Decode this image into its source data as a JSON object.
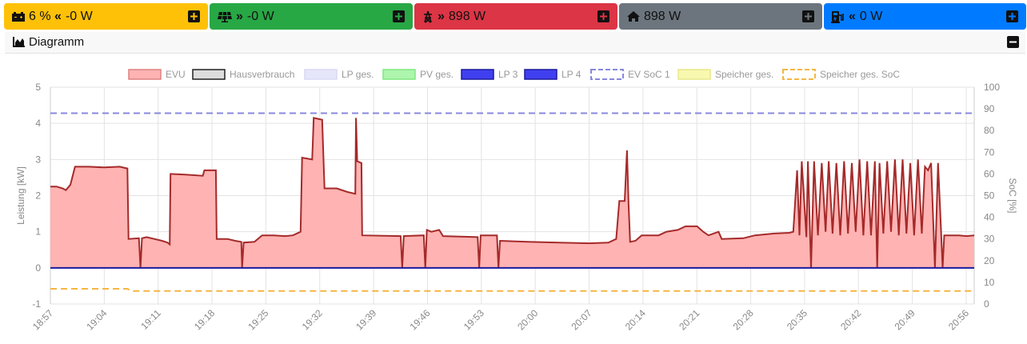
{
  "tiles": [
    {
      "id": "battery",
      "text": "6 % « -0 W",
      "soc": "6 %",
      "arrow": "«",
      "power": "-0 W",
      "bg": "#ffc107",
      "fg": "#111111"
    },
    {
      "id": "pv",
      "arrow": "»",
      "power": "-0 W",
      "bg": "#28a745",
      "fg": "#111111"
    },
    {
      "id": "grid",
      "arrow": "»",
      "power": "898 W",
      "bg": "#dc3545",
      "fg": "#111111"
    },
    {
      "id": "house",
      "power": "898 W",
      "bg": "#6c757d",
      "fg": "#111111"
    },
    {
      "id": "charge",
      "arrow": "«",
      "power": "0 W",
      "bg": "#007bff",
      "fg": "#111111"
    }
  ],
  "panel": {
    "title": "Diagramm"
  },
  "chart_data": {
    "type": "area",
    "legend": [
      {
        "name": "EVU",
        "fill": "#ffb3b3",
        "stroke": "#e08080",
        "dashed": false
      },
      {
        "name": "Hausverbrauch",
        "fill": "#dddddd",
        "stroke": "#222222",
        "dashed": false
      },
      {
        "name": "LP ges.",
        "fill": "#e6e6fa",
        "stroke": "#d8d8f5",
        "dashed": false
      },
      {
        "name": "PV ges.",
        "fill": "#aef5ae",
        "stroke": "#7ee87e",
        "dashed": false
      },
      {
        "name": "LP 3",
        "fill": "#4040f0",
        "stroke": "#1a1a9e",
        "dashed": false
      },
      {
        "name": "LP 4",
        "fill": "#4040f0",
        "stroke": "#1a1a9e",
        "dashed": false
      },
      {
        "name": "EV SoC 1",
        "fill": "#ffffff",
        "stroke": "#8888dd",
        "dashed": true
      },
      {
        "name": "Speicher ges.",
        "fill": "#f8f8b0",
        "stroke": "#e8e88a",
        "dashed": false
      },
      {
        "name": "Speicher ges. SoC",
        "fill": "#ffffff",
        "stroke": "#f5b642",
        "dashed": true
      }
    ],
    "ylabel": "Leistung [kW]",
    "y2label": "SoC [%]",
    "ylim": [
      -1,
      5
    ],
    "y2lim": [
      0,
      100
    ],
    "yticks": [
      "5",
      "4",
      "3",
      "2",
      "1",
      "0",
      "-1"
    ],
    "y2ticks": [
      "100",
      "90",
      "80",
      "70",
      "60",
      "50",
      "40",
      "30",
      "20",
      "10",
      "0"
    ],
    "xticks": [
      "18:57",
      "19:04",
      "19:11",
      "19:18",
      "19:25",
      "19:32",
      "19:39",
      "19:46",
      "19:53",
      "20:00",
      "20:07",
      "20:14",
      "20:21",
      "20:28",
      "20:35",
      "20:42",
      "20:49",
      "20:56"
    ],
    "xrange_minutes": [
      0,
      120
    ],
    "evu_series": [
      [
        0,
        2.25
      ],
      [
        0.8,
        2.25
      ],
      [
        1.6,
        2.2
      ],
      [
        2,
        2.15
      ],
      [
        2.6,
        2.3
      ],
      [
        3.2,
        2.8
      ],
      [
        5,
        2.8
      ],
      [
        7,
        2.78
      ],
      [
        9,
        2.8
      ],
      [
        10,
        2.75
      ],
      [
        10.15,
        0.8
      ],
      [
        11.5,
        0.82
      ],
      [
        11.7,
        0.0
      ],
      [
        11.9,
        0.82
      ],
      [
        12.5,
        0.85
      ],
      [
        13.5,
        0.8
      ],
      [
        14.5,
        0.75
      ],
      [
        15.2,
        0.7
      ],
      [
        15.5,
        0.65
      ],
      [
        15.6,
        2.6
      ],
      [
        17.5,
        2.58
      ],
      [
        19.8,
        2.55
      ],
      [
        20,
        2.7
      ],
      [
        21.5,
        2.7
      ],
      [
        21.6,
        0.8
      ],
      [
        23,
        0.8
      ],
      [
        24,
        0.75
      ],
      [
        24.8,
        0.72
      ],
      [
        24.9,
        0.0
      ],
      [
        25.1,
        0.7
      ],
      [
        26.5,
        0.72
      ],
      [
        27.5,
        0.9
      ],
      [
        29,
        0.9
      ],
      [
        30.5,
        0.88
      ],
      [
        31.5,
        0.9
      ],
      [
        32.5,
        1.0
      ],
      [
        32.7,
        3.05
      ],
      [
        34,
        3.0
      ],
      [
        34.2,
        4.15
      ],
      [
        35.3,
        4.1
      ],
      [
        35.6,
        2.2
      ],
      [
        37.2,
        2.2
      ],
      [
        38.6,
        2.1
      ],
      [
        39.6,
        2.05
      ],
      [
        39.7,
        4.15
      ],
      [
        39.85,
        2.95
      ],
      [
        40.4,
        2.9
      ],
      [
        40.5,
        0.9
      ],
      [
        45.5,
        0.88
      ],
      [
        45.7,
        0.0
      ],
      [
        45.9,
        0.88
      ],
      [
        48.5,
        0.9
      ],
      [
        48.7,
        0.0
      ],
      [
        48.9,
        1.05
      ],
      [
        49.5,
        1.0
      ],
      [
        50.5,
        1.05
      ],
      [
        51,
        0.88
      ],
      [
        55.5,
        0.85
      ],
      [
        55.7,
        0.0
      ],
      [
        55.9,
        0.9
      ],
      [
        58,
        0.9
      ],
      [
        58.2,
        0.0
      ],
      [
        58.4,
        0.75
      ],
      [
        62,
        0.72
      ],
      [
        66,
        0.7
      ],
      [
        70,
        0.68
      ],
      [
        72.5,
        0.7
      ],
      [
        73.5,
        0.8
      ],
      [
        73.9,
        1.85
      ],
      [
        74.6,
        1.85
      ],
      [
        74.9,
        3.25
      ],
      [
        75.1,
        1.8
      ],
      [
        75.3,
        0.72
      ],
      [
        76,
        0.75
      ],
      [
        76.8,
        0.9
      ],
      [
        79,
        0.9
      ],
      [
        80,
        1.0
      ],
      [
        81.5,
        1.05
      ],
      [
        82.5,
        1.15
      ],
      [
        84,
        1.15
      ],
      [
        84.8,
        1.0
      ],
      [
        85.5,
        0.9
      ],
      [
        86.8,
        1.0
      ],
      [
        87.2,
        0.8
      ],
      [
        90,
        0.82
      ],
      [
        91.5,
        0.9
      ],
      [
        94,
        0.95
      ],
      [
        96,
        0.97
      ],
      [
        96.5,
        1.0
      ],
      [
        97,
        2.7
      ],
      [
        97.3,
        0.9
      ],
      [
        97.6,
        2.95
      ],
      [
        98.2,
        0.85
      ],
      [
        98.4,
        2.95
      ],
      [
        98.8,
        0.0
      ],
      [
        99.2,
        2.95
      ],
      [
        99.7,
        0.9
      ],
      [
        100.2,
        2.9
      ],
      [
        100.7,
        1.0
      ],
      [
        101.1,
        2.95
      ],
      [
        101.6,
        0.95
      ],
      [
        102.1,
        2.9
      ],
      [
        102.6,
        0.9
      ],
      [
        103.1,
        2.95
      ],
      [
        103.6,
        0.95
      ],
      [
        104.1,
        2.9
      ],
      [
        104.6,
        1.0
      ],
      [
        105.1,
        3.0
      ],
      [
        105.6,
        0.9
      ],
      [
        106.1,
        2.95
      ],
      [
        106.6,
        0.9
      ],
      [
        107.1,
        2.95
      ],
      [
        107.4,
        0.0
      ],
      [
        107.7,
        2.9
      ],
      [
        108.2,
        0.95
      ],
      [
        108.7,
        2.95
      ],
      [
        109.2,
        1.0
      ],
      [
        109.7,
        3.0
      ],
      [
        110.2,
        0.9
      ],
      [
        110.7,
        3.0
      ],
      [
        111.2,
        0.95
      ],
      [
        111.7,
        2.9
      ],
      [
        112.2,
        0.9
      ],
      [
        112.7,
        3.0
      ],
      [
        113.2,
        0.95
      ],
      [
        113.6,
        2.8
      ],
      [
        114,
        2.7
      ],
      [
        114.4,
        2.9
      ],
      [
        114.9,
        0.0
      ],
      [
        115.3,
        2.9
      ],
      [
        115.7,
        1.0
      ],
      [
        115.9,
        0.0
      ],
      [
        116.1,
        0.9
      ],
      [
        118,
        0.9
      ],
      [
        119,
        0.88
      ],
      [
        120,
        0.9
      ]
    ],
    "ev_soc_1": [
      [
        0,
        88
      ],
      [
        120,
        88
      ]
    ],
    "speicher_soc": [
      [
        0,
        7
      ],
      [
        10,
        7
      ],
      [
        10.5,
        6
      ],
      [
        120,
        6
      ]
    ],
    "colors": {
      "evu_fill": "#ffb3b3",
      "evu_line": "#a52a2a",
      "zero_line": "#1a1a9e",
      "ev_soc": "#8888dd",
      "speicher_soc": "#f5b642",
      "grid": "#e3e3e3"
    }
  }
}
